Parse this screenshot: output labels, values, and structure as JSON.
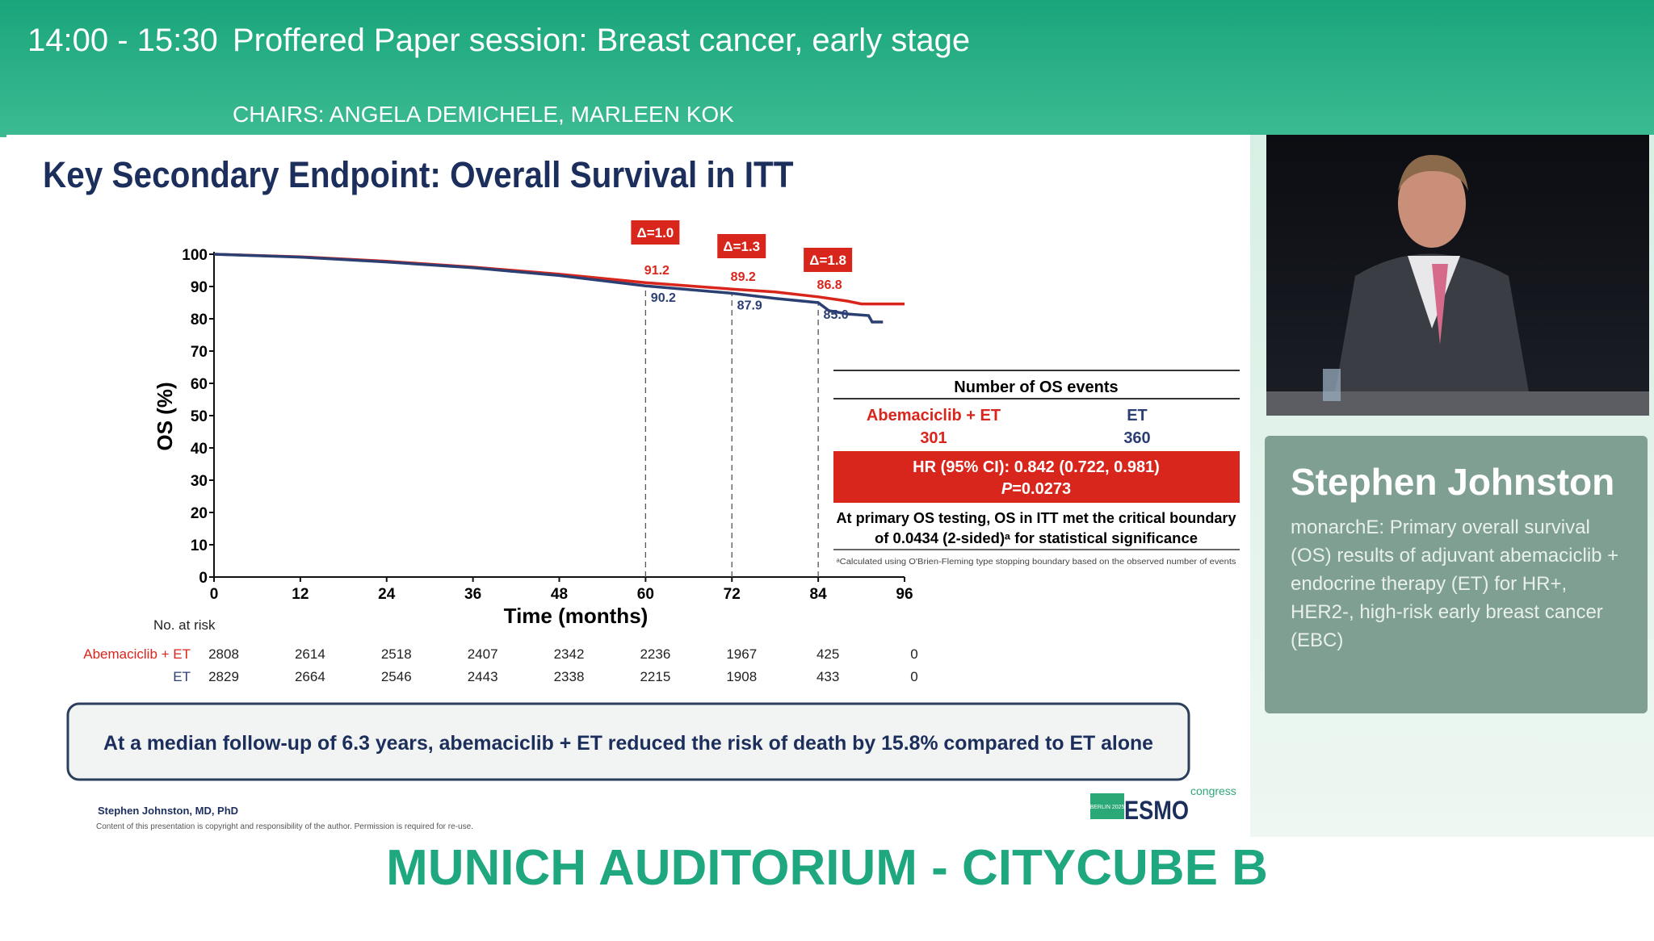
{
  "header": {
    "time": "14:00 - 15:30",
    "session": "Proffered Paper session: Breast cancer, early stage",
    "chairs": "CHAIRS: ANGELA DEMICHELE, MARLEEN KOK"
  },
  "slide": {
    "title": "Key Secondary Endpoint: Overall Survival in ITT",
    "events_table": {
      "heading": "Number of OS events",
      "arm1": "Abemaciclib + ET",
      "arm1_n": "301",
      "arm2": "ET",
      "arm2_n": "360",
      "hr": "HR (95% CI): 0.842 (0.722, 0.981)",
      "p_label": "P",
      "p_value": "=0.0273",
      "note1": "At primary OS testing, OS in ITT met the critical boundary",
      "note2": "of 0.0434 (2-sided)ᵃ for statistical significance",
      "footnote": "ᵃCalculated using O'Brien-Fleming type stopping boundary based on the observed number of events"
    },
    "risk": {
      "title": "No. at risk",
      "rows": [
        {
          "label": "Abemaciclib + ET",
          "values": [
            "2808",
            "2614",
            "2518",
            "2407",
            "2342",
            "2236",
            "1967",
            "425",
            "0"
          ]
        },
        {
          "label": "ET",
          "values": [
            "2829",
            "2664",
            "2546",
            "2443",
            "2338",
            "2215",
            "1908",
            "433",
            "0"
          ]
        }
      ]
    },
    "summary": "At a median follow-up of 6.3 years, abemaciclib + ET  reduced the risk of death by 15.8% compared to ET alone",
    "author": "Stephen Johnston, MD, PhD",
    "copyright": "Content of this presentation is copyright and responsibility of the author. Permission is required for re-use.",
    "logo": {
      "city": "BERLIN 2025",
      "brand": "ESMO",
      "suffix": "congress"
    }
  },
  "speaker": {
    "name": "Stephen Johnston",
    "talk": "monarchE: Primary overall survival (OS) results of adjuvant abemaciclib + endocrine therapy (ET) for HR+, HER2-, high-risk early breast cancer (EBC)"
  },
  "venue": "MUNICH AUDITORIUM - CITYCUBE B",
  "colors": {
    "red": "#d9261c",
    "blue": "#2b3f73",
    "green": "#1fa77f"
  },
  "chart_data": {
    "type": "line",
    "xlabel": "Time (months)",
    "ylabel": "OS (%)",
    "xlim": [
      0,
      96
    ],
    "ylim": [
      0,
      100
    ],
    "xticks": [
      0,
      12,
      24,
      36,
      48,
      60,
      72,
      84,
      96
    ],
    "yticks": [
      0,
      10,
      20,
      30,
      40,
      50,
      60,
      70,
      80,
      90,
      100
    ],
    "series": [
      {
        "name": "Abemaciclib + ET",
        "color": "#d9261c",
        "points": [
          [
            0,
            100
          ],
          [
            12,
            99.2
          ],
          [
            24,
            97.8
          ],
          [
            36,
            96
          ],
          [
            48,
            93.8
          ],
          [
            60,
            91.2
          ],
          [
            72,
            89.2
          ],
          [
            78,
            88.3
          ],
          [
            84,
            86.8
          ],
          [
            88,
            85.5
          ],
          [
            90,
            84.6
          ],
          [
            96,
            84.6
          ]
        ]
      },
      {
        "name": "ET",
        "color": "#2b3f73",
        "points": [
          [
            0,
            100
          ],
          [
            12,
            99.1
          ],
          [
            24,
            97.6
          ],
          [
            36,
            95.8
          ],
          [
            48,
            93.4
          ],
          [
            60,
            90.2
          ],
          [
            72,
            87.9
          ],
          [
            78,
            86.3
          ],
          [
            84,
            85
          ],
          [
            85.5,
            82.5
          ],
          [
            88,
            81.5
          ],
          [
            91,
            81
          ],
          [
            91.5,
            79
          ],
          [
            93,
            79
          ]
        ]
      }
    ],
    "annotations": [
      {
        "x": 60,
        "delta": "Δ=1.0",
        "red": "91.2",
        "blue": "90.2"
      },
      {
        "x": 72,
        "delta": "Δ=1.3",
        "red": "89.2",
        "blue": "87.9"
      },
      {
        "x": 84,
        "delta": "Δ=1.8",
        "red": "86.8",
        "blue": "85.0"
      }
    ]
  }
}
